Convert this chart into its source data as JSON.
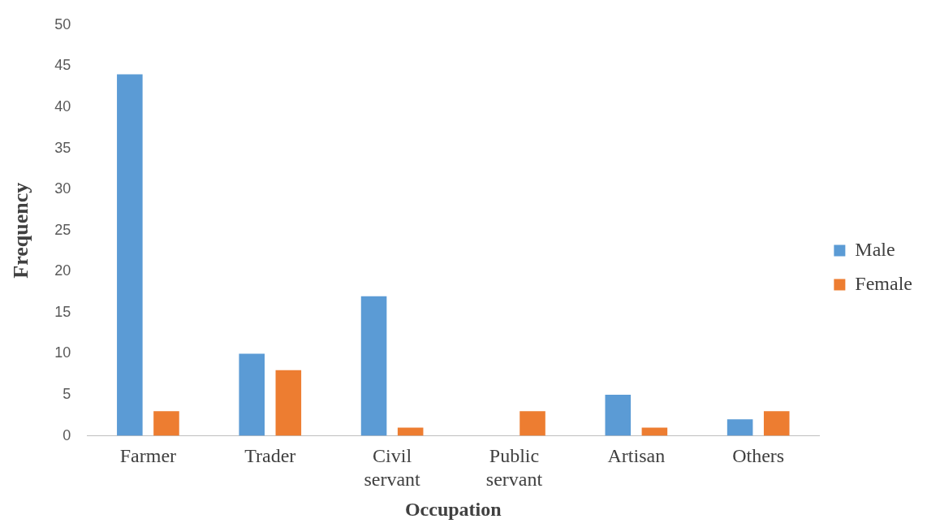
{
  "chart_data": {
    "type": "bar",
    "xlabel": "Occupation",
    "ylabel": "Frequency",
    "categories": [
      "Farmer",
      "Trader",
      "Civil servant",
      "Public servant",
      "Artisan",
      "Others"
    ],
    "series": [
      {
        "name": "Male",
        "color": "#5b9bd5",
        "values": [
          44,
          10,
          17,
          0,
          5,
          2
        ]
      },
      {
        "name": "Female",
        "color": "#ed7d31",
        "values": [
          3,
          8,
          1,
          3,
          1,
          3
        ]
      }
    ],
    "ylim": [
      0,
      50
    ],
    "yticks": [
      0,
      5,
      10,
      15,
      20,
      25,
      30,
      35,
      40,
      45,
      50
    ],
    "grid": false,
    "legend": "right"
  }
}
